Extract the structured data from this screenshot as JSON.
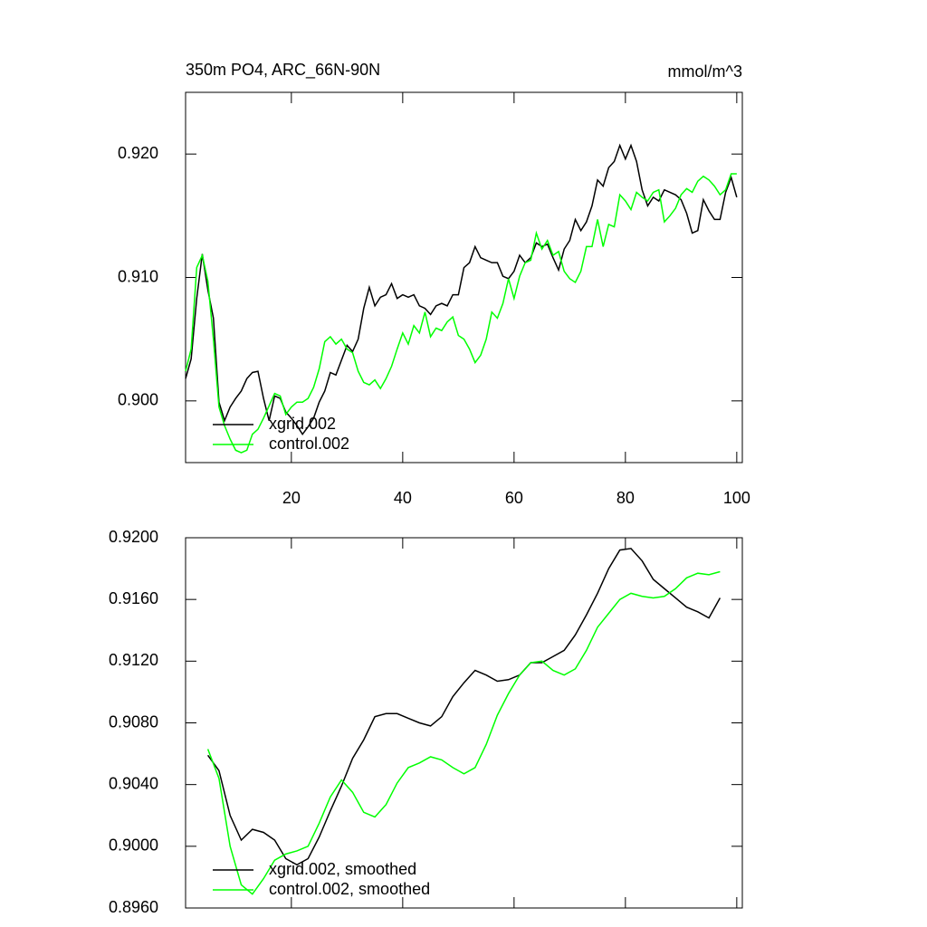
{
  "chart_data": [
    {
      "type": "line",
      "title": "350m PO4, ARC_66N-90N",
      "units": "mmol/m^3",
      "x": [
        1,
        2,
        3,
        4,
        5,
        6,
        7,
        8,
        9,
        10,
        11,
        12,
        13,
        14,
        15,
        16,
        17,
        18,
        19,
        20,
        21,
        22,
        23,
        24,
        25,
        26,
        27,
        28,
        29,
        30,
        31,
        32,
        33,
        34,
        35,
        36,
        37,
        38,
        39,
        40,
        41,
        42,
        43,
        44,
        45,
        46,
        47,
        48,
        49,
        50,
        51,
        52,
        53,
        54,
        55,
        56,
        57,
        58,
        59,
        60,
        61,
        62,
        63,
        64,
        65,
        66,
        67,
        68,
        69,
        70,
        71,
        72,
        73,
        74,
        75,
        76,
        77,
        78,
        79,
        80,
        81,
        82,
        83,
        84,
        85,
        86,
        87,
        88,
        89,
        90,
        91,
        92,
        93,
        94,
        95,
        96,
        97,
        98,
        99,
        100
      ],
      "series": [
        {
          "name": "xgrid.002",
          "color": "#000000",
          "values": [
            0.9018,
            0.9034,
            0.9083,
            0.9119,
            0.909,
            0.9067,
            0.8999,
            0.8984,
            0.8995,
            0.9002,
            0.9008,
            0.9018,
            0.9023,
            0.9024,
            0.9002,
            0.8984,
            0.9004,
            0.9002,
            0.8991,
            0.8986,
            0.898,
            0.8973,
            0.8979,
            0.8986,
            0.8999,
            0.9008,
            0.9023,
            0.9021,
            0.9033,
            0.9045,
            0.904,
            0.905,
            0.9075,
            0.9092,
            0.9077,
            0.9084,
            0.9086,
            0.9095,
            0.9083,
            0.9086,
            0.9084,
            0.9086,
            0.9077,
            0.9075,
            0.907,
            0.9077,
            0.9079,
            0.9077,
            0.9086,
            0.9086,
            0.9108,
            0.9112,
            0.9125,
            0.9116,
            0.9114,
            0.9112,
            0.9112,
            0.9101,
            0.9099,
            0.9105,
            0.9118,
            0.9112,
            0.9116,
            0.9128,
            0.9125,
            0.9127,
            0.9116,
            0.9106,
            0.9123,
            0.913,
            0.9147,
            0.9138,
            0.9145,
            0.9158,
            0.9179,
            0.9174,
            0.9189,
            0.9194,
            0.9207,
            0.9196,
            0.9207,
            0.9194,
            0.9171,
            0.9158,
            0.9165,
            0.9162,
            0.9171,
            0.9169,
            0.9167,
            0.9163,
            0.9152,
            0.9136,
            0.9138,
            0.9163,
            0.9154,
            0.9147,
            0.9147,
            0.9169,
            0.9181,
            0.9165
          ]
        },
        {
          "name": "control.002",
          "color": "#00ff00",
          "values": [
            0.9024,
            0.9042,
            0.9108,
            0.9118,
            0.9097,
            0.905,
            0.8995,
            0.898,
            0.8969,
            0.896,
            0.8958,
            0.896,
            0.8973,
            0.8977,
            0.8986,
            0.8996,
            0.9006,
            0.9004,
            0.8989,
            0.8995,
            0.8999,
            0.8999,
            0.9002,
            0.9011,
            0.9026,
            0.9048,
            0.9052,
            0.9046,
            0.905,
            0.9042,
            0.9039,
            0.9024,
            0.9015,
            0.9013,
            0.9017,
            0.901,
            0.9018,
            0.9028,
            0.9042,
            0.9055,
            0.9046,
            0.9061,
            0.9055,
            0.9072,
            0.9052,
            0.9059,
            0.9057,
            0.9064,
            0.9068,
            0.9053,
            0.905,
            0.9042,
            0.9031,
            0.9037,
            0.905,
            0.9072,
            0.9067,
            0.9079,
            0.9099,
            0.9083,
            0.9101,
            0.9112,
            0.9114,
            0.9136,
            0.9123,
            0.913,
            0.9118,
            0.9121,
            0.9105,
            0.9099,
            0.9096,
            0.9105,
            0.9125,
            0.9125,
            0.9147,
            0.9125,
            0.9143,
            0.9141,
            0.9167,
            0.9162,
            0.9155,
            0.9169,
            0.9165,
            0.9162,
            0.9169,
            0.9171,
            0.9145,
            0.915,
            0.9156,
            0.9167,
            0.9172,
            0.9169,
            0.9178,
            0.9182,
            0.9179,
            0.9174,
            0.9167,
            0.9171,
            0.9184,
            0.9184
          ]
        }
      ],
      "xlim": [
        1,
        101
      ],
      "xticks": [
        20,
        40,
        60,
        80,
        100
      ],
      "xtick_labels": true,
      "ylim": [
        0.895,
        0.925
      ],
      "yticks": [
        {
          "value": 0.9,
          "label": "0.900"
        },
        {
          "value": 0.91,
          "label": "0.910"
        },
        {
          "value": 0.92,
          "label": "0.920"
        }
      ],
      "legend": "lower left"
    },
    {
      "type": "line",
      "x": [
        5,
        7,
        9,
        11,
        13,
        15,
        17,
        19,
        21,
        23,
        25,
        27,
        29,
        31,
        33,
        35,
        37,
        39,
        41,
        43,
        45,
        47,
        49,
        51,
        53,
        55,
        57,
        59,
        61,
        63,
        65,
        67,
        69,
        71,
        73,
        75,
        77,
        79,
        81,
        83,
        85,
        87,
        89,
        91,
        93,
        95,
        97
      ],
      "series": [
        {
          "name": "xgrid.002, smoothed",
          "color": "#000000",
          "values": [
            0.9059,
            0.9049,
            0.902,
            0.9004,
            0.9011,
            0.9009,
            0.9004,
            0.8992,
            0.8988,
            0.8992,
            0.9006,
            0.9023,
            0.9039,
            0.9057,
            0.9069,
            0.9084,
            0.9086,
            0.9086,
            0.9083,
            0.908,
            0.9078,
            0.9084,
            0.9097,
            0.9106,
            0.9114,
            0.9111,
            0.9107,
            0.9108,
            0.9111,
            0.9119,
            0.9119,
            0.9123,
            0.9127,
            0.9137,
            0.915,
            0.9164,
            0.918,
            0.9192,
            0.9193,
            0.9185,
            0.9173,
            0.9167,
            0.9161,
            0.9155,
            0.9152,
            0.9148,
            0.9161
          ]
        },
        {
          "name": "control.002, smoothed",
          "color": "#00ff00",
          "values": [
            0.9063,
            0.9044,
            0.9,
            0.8975,
            0.8969,
            0.8979,
            0.8991,
            0.8995,
            0.8997,
            0.9,
            0.9015,
            0.9032,
            0.9043,
            0.9035,
            0.9022,
            0.9019,
            0.9027,
            0.9041,
            0.9051,
            0.9054,
            0.9058,
            0.9056,
            0.9051,
            0.9047,
            0.9051,
            0.9066,
            0.9085,
            0.9099,
            0.9111,
            0.9119,
            0.912,
            0.9114,
            0.9111,
            0.9115,
            0.9127,
            0.9142,
            0.9151,
            0.916,
            0.9164,
            0.9162,
            0.9161,
            0.9162,
            0.9167,
            0.9174,
            0.9177,
            0.9176,
            0.9178
          ]
        }
      ],
      "xlim": [
        1,
        101
      ],
      "xticks": [
        20,
        40,
        60,
        80,
        100
      ],
      "xtick_labels": false,
      "ylim": [
        0.896,
        0.92
      ],
      "yticks": [
        {
          "value": 0.896,
          "label": "0.8960"
        },
        {
          "value": 0.9,
          "label": "0.9000"
        },
        {
          "value": 0.904,
          "label": "0.9040"
        },
        {
          "value": 0.908,
          "label": "0.9080"
        },
        {
          "value": 0.912,
          "label": "0.9120"
        },
        {
          "value": 0.916,
          "label": "0.9160"
        },
        {
          "value": 0.92,
          "label": "0.9200"
        }
      ],
      "legend": "lower left"
    }
  ]
}
